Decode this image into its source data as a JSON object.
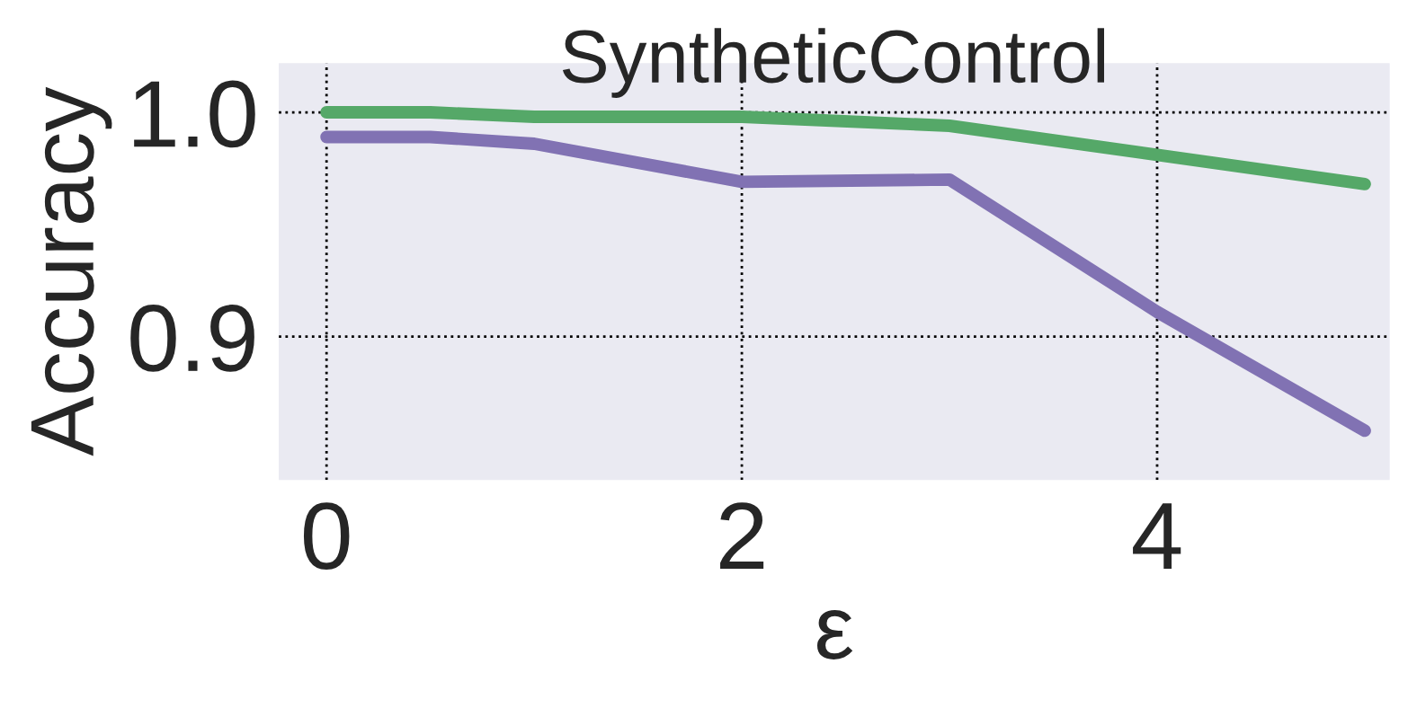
{
  "chart_data": {
    "type": "line",
    "title": "SyntheticControl",
    "xlabel": "ε",
    "ylabel": "Accuracy",
    "x": [
      0,
      0.5,
      1,
      2,
      3,
      4,
      5
    ],
    "series": [
      {
        "color": "#55a868",
        "values": [
          1.0,
          1.0,
          0.998,
          0.998,
          0.994,
          0.981,
          0.968
        ]
      },
      {
        "color": "#8172b3",
        "values": [
          0.989,
          0.989,
          0.986,
          0.969,
          0.97,
          0.911,
          0.858
        ]
      }
    ],
    "xlim": [
      -0.23,
      5.12
    ],
    "ylim": [
      0.836,
      1.022
    ],
    "xticks": [
      0,
      2,
      4
    ],
    "yticks": [
      {
        "value": 0.9,
        "label": "0.9"
      },
      {
        "value": 1.0,
        "label": "1.0"
      }
    ],
    "grid": true,
    "marker": "none",
    "line_style": "solid",
    "legend": false
  }
}
